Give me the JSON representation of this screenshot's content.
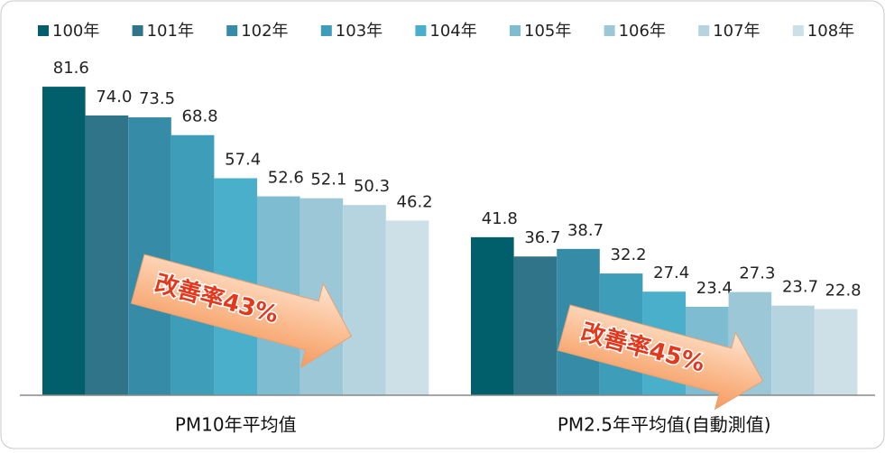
{
  "chart_data": {
    "type": "bar",
    "categories": [
      "PM10年平均值",
      "PM2.5年平均值(自動測值)"
    ],
    "series": [
      {
        "name": "100年",
        "color": "#005f6b",
        "values": [
          81.6,
          41.8
        ],
        "value_labels": [
          "81.6",
          "41.8"
        ]
      },
      {
        "name": "101年",
        "color": "#2f7488",
        "values": [
          74.0,
          36.7
        ],
        "value_labels": [
          "74.0",
          "36.7"
        ]
      },
      {
        "name": "102年",
        "color": "#368ca6",
        "values": [
          73.5,
          38.7
        ],
        "value_labels": [
          "73.5",
          "38.7"
        ]
      },
      {
        "name": "103年",
        "color": "#3e9db9",
        "values": [
          68.8,
          32.2
        ],
        "value_labels": [
          "68.8",
          "32.2"
        ]
      },
      {
        "name": "104年",
        "color": "#4aafcb",
        "values": [
          57.4,
          27.4
        ],
        "value_labels": [
          "57.4",
          "27.4"
        ]
      },
      {
        "name": "105年",
        "color": "#7dbcd1",
        "values": [
          52.6,
          23.4
        ],
        "value_labels": [
          "52.6",
          "23.4"
        ]
      },
      {
        "name": "106年",
        "color": "#9cc7d6",
        "values": [
          52.1,
          27.3
        ],
        "value_labels": [
          "52.1",
          "27.3"
        ]
      },
      {
        "name": "107年",
        "color": "#b6d4df",
        "values": [
          50.3,
          23.7
        ],
        "value_labels": [
          "50.3",
          "23.7"
        ]
      },
      {
        "name": "108年",
        "color": "#cddfe7",
        "values": [
          46.2,
          22.8
        ],
        "value_labels": [
          "46.2",
          "22.8"
        ]
      }
    ],
    "annotations": [
      "改善率43%",
      "改善率45%"
    ],
    "ylim": [
      0,
      100
    ],
    "legend": "top"
  }
}
